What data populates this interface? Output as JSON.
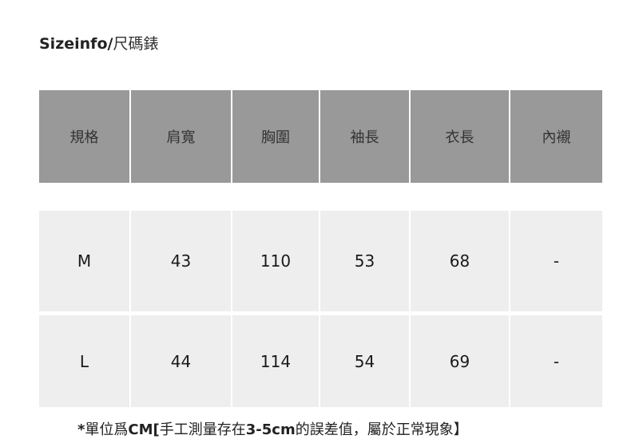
{
  "title": {
    "bold": "Sizeinfo/",
    "cn": "尺碼錶"
  },
  "table": {
    "headers": [
      "規格",
      "肩寬",
      "胸圍",
      "袖長",
      "衣長",
      "內襯"
    ],
    "rows": [
      [
        "M",
        "43",
        "110",
        "53",
        "68",
        "-"
      ],
      [
        "L",
        "44",
        "114",
        "54",
        "69",
        "-"
      ]
    ]
  },
  "note": {
    "parts": [
      "*",
      "單位爲",
      "CM[",
      "手工測量存在",
      "3-5cm",
      "的誤差值，屬於正常現象】"
    ]
  },
  "colors": {
    "header_bg": "#999999",
    "row_bg": "#eeeeee"
  }
}
